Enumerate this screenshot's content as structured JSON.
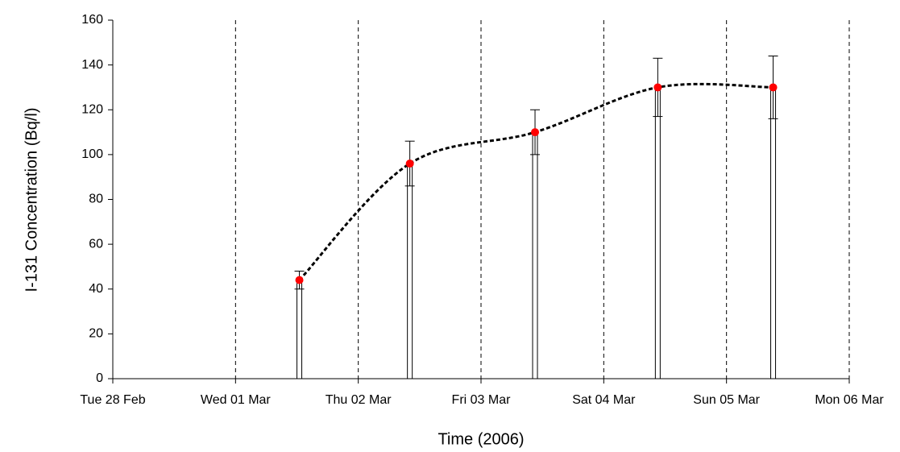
{
  "chart_data": {
    "type": "bar",
    "x_label": "Time (2006)",
    "y_label": "I-131 Concentration (Bq/l)",
    "x": [
      1.52,
      2.42,
      3.44,
      4.44,
      5.38
    ],
    "values": [
      44,
      96,
      110,
      130,
      130
    ],
    "errors": [
      4,
      10,
      10,
      13,
      14
    ],
    "color": "#ff0000",
    "bar_color": "#ffffff",
    "line_color": "#000000",
    "xlim": [
      0,
      6
    ],
    "xticks": [
      {
        "value": 0,
        "label": "Tue 28 Feb"
      },
      {
        "value": 1,
        "label": "Wed 01 Mar"
      },
      {
        "value": 2,
        "label": "Thu 02 Mar"
      },
      {
        "value": 3,
        "label": "Fri 03 Mar"
      },
      {
        "value": 4,
        "label": "Sat 04 Mar"
      },
      {
        "value": 5,
        "label": "Sun 05 Mar"
      },
      {
        "value": 6,
        "label": "Mon 06 Mar"
      }
    ],
    "ylim": [
      0,
      160
    ],
    "yticks": [
      0,
      20,
      40,
      60,
      80,
      100,
      120,
      140,
      160
    ],
    "grid": true
  }
}
